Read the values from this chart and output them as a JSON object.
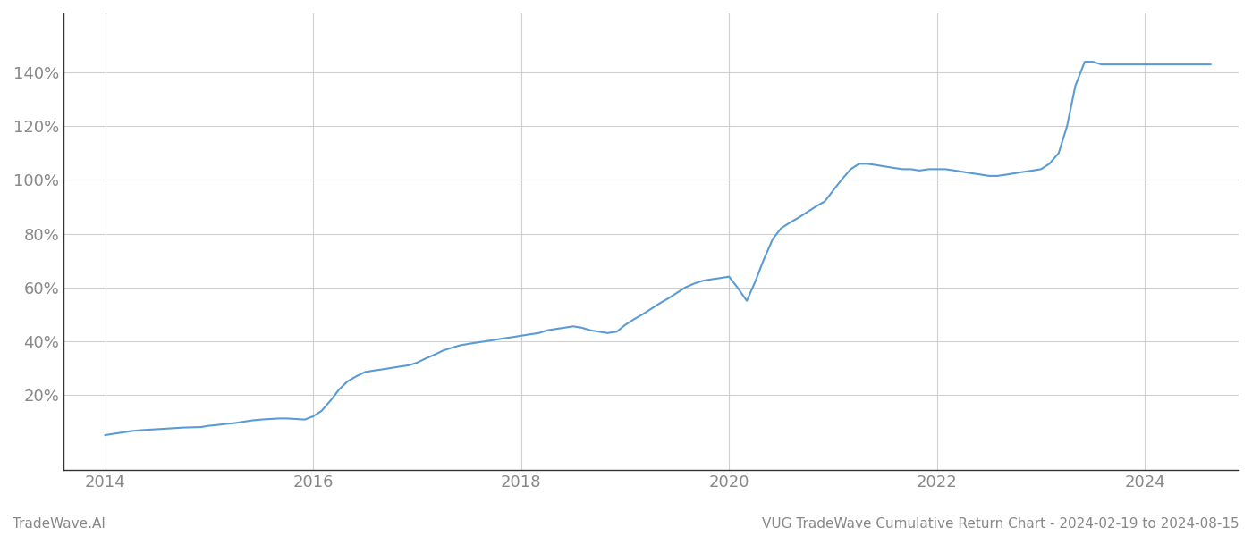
{
  "title": "VUG TradeWave Cumulative Return Chart - 2024-02-19 to 2024-08-15",
  "footer_left": "TradeWave.AI",
  "line_color": "#5b9bd5",
  "background_color": "#ffffff",
  "grid_color": "#d0d0d0",
  "x_tick_labels": [
    "2014",
    "2016",
    "2018",
    "2020",
    "2022",
    "2024"
  ],
  "x_tick_positions": [
    2014,
    2016,
    2018,
    2020,
    2022,
    2024
  ],
  "y_ticks": [
    0.2,
    0.4,
    0.6,
    0.8,
    1.0,
    1.2,
    1.4
  ],
  "y_tick_labels": [
    "20%",
    "40%",
    "60%",
    "80%",
    "100%",
    "120%",
    "140%"
  ],
  "xlim": [
    2013.6,
    2024.9
  ],
  "ylim": [
    -0.08,
    1.62
  ],
  "data_x": [
    2014.0,
    2014.08,
    2014.17,
    2014.25,
    2014.33,
    2014.42,
    2014.5,
    2014.58,
    2014.67,
    2014.75,
    2014.83,
    2014.92,
    2015.0,
    2015.08,
    2015.17,
    2015.25,
    2015.33,
    2015.42,
    2015.5,
    2015.58,
    2015.67,
    2015.75,
    2015.83,
    2015.92,
    2016.0,
    2016.08,
    2016.17,
    2016.25,
    2016.33,
    2016.42,
    2016.5,
    2016.58,
    2016.67,
    2016.75,
    2016.83,
    2016.92,
    2017.0,
    2017.08,
    2017.17,
    2017.25,
    2017.33,
    2017.42,
    2017.5,
    2017.58,
    2017.67,
    2017.75,
    2017.83,
    2017.92,
    2018.0,
    2018.08,
    2018.17,
    2018.25,
    2018.33,
    2018.42,
    2018.5,
    2018.58,
    2018.67,
    2018.75,
    2018.83,
    2018.92,
    2019.0,
    2019.08,
    2019.17,
    2019.25,
    2019.33,
    2019.42,
    2019.5,
    2019.58,
    2019.67,
    2019.75,
    2019.83,
    2019.92,
    2020.0,
    2020.08,
    2020.17,
    2020.25,
    2020.33,
    2020.42,
    2020.5,
    2020.58,
    2020.67,
    2020.75,
    2020.83,
    2020.92,
    2021.0,
    2021.08,
    2021.17,
    2021.25,
    2021.33,
    2021.42,
    2021.5,
    2021.58,
    2021.67,
    2021.75,
    2021.83,
    2021.92,
    2022.0,
    2022.08,
    2022.17,
    2022.25,
    2022.33,
    2022.42,
    2022.5,
    2022.58,
    2022.67,
    2022.75,
    2022.83,
    2022.92,
    2023.0,
    2023.08,
    2023.17,
    2023.25,
    2023.33,
    2023.42,
    2023.5,
    2023.58,
    2023.67,
    2023.75,
    2023.83,
    2023.92,
    2024.0,
    2024.08,
    2024.17,
    2024.25,
    2024.33,
    2024.42,
    2024.5,
    2024.58,
    2024.63
  ],
  "data_y": [
    0.05,
    0.055,
    0.06,
    0.065,
    0.068,
    0.07,
    0.072,
    0.074,
    0.076,
    0.078,
    0.079,
    0.08,
    0.085,
    0.088,
    0.092,
    0.095,
    0.1,
    0.105,
    0.108,
    0.11,
    0.112,
    0.112,
    0.11,
    0.108,
    0.12,
    0.14,
    0.18,
    0.22,
    0.25,
    0.27,
    0.285,
    0.29,
    0.295,
    0.3,
    0.305,
    0.31,
    0.32,
    0.335,
    0.35,
    0.365,
    0.375,
    0.385,
    0.39,
    0.395,
    0.4,
    0.405,
    0.41,
    0.415,
    0.42,
    0.425,
    0.43,
    0.44,
    0.445,
    0.45,
    0.455,
    0.45,
    0.44,
    0.435,
    0.43,
    0.435,
    0.46,
    0.48,
    0.5,
    0.52,
    0.54,
    0.56,
    0.58,
    0.6,
    0.615,
    0.625,
    0.63,
    0.635,
    0.64,
    0.6,
    0.55,
    0.62,
    0.7,
    0.78,
    0.82,
    0.84,
    0.86,
    0.88,
    0.9,
    0.92,
    0.96,
    1.0,
    1.04,
    1.06,
    1.06,
    1.055,
    1.05,
    1.045,
    1.04,
    1.04,
    1.035,
    1.04,
    1.04,
    1.04,
    1.035,
    1.03,
    1.025,
    1.02,
    1.015,
    1.015,
    1.02,
    1.025,
    1.03,
    1.035,
    1.04,
    1.06,
    1.1,
    1.2,
    1.35,
    1.44,
    1.44,
    1.43,
    1.43,
    1.43,
    1.43,
    1.43,
    1.43,
    1.43,
    1.43,
    1.43,
    1.43,
    1.43,
    1.43,
    1.43,
    1.43
  ],
  "line_width": 1.5,
  "title_fontsize": 11,
  "footer_fontsize": 11,
  "tick_fontsize": 13,
  "tick_color": "#888888",
  "spine_color": "#333333"
}
